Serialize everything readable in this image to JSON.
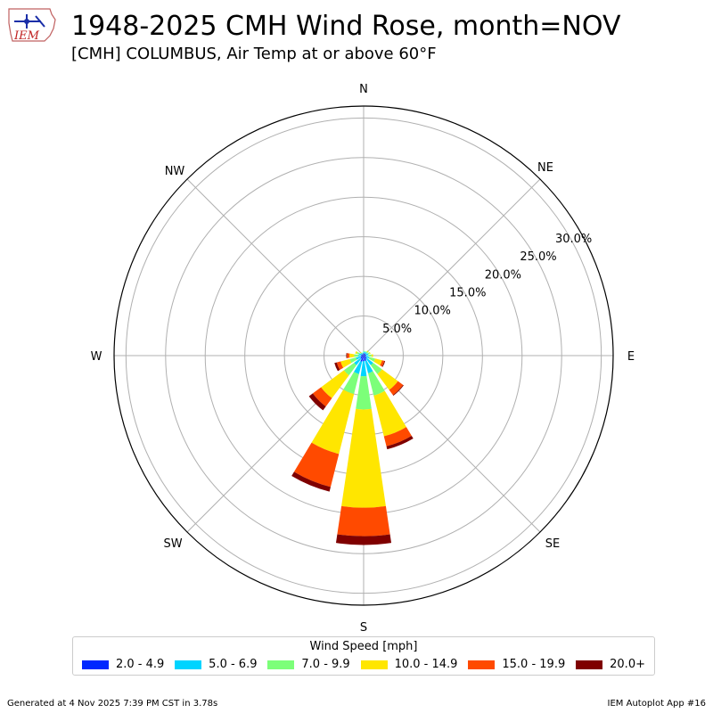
{
  "header": {
    "title": "1948-2025 CMH Wind Rose, month=NOV",
    "subtitle": "[CMH] COLUMBUS, Air Temp at or above 60°F",
    "logo_text": "IEM"
  },
  "footer": {
    "generated": "Generated at 4 Nov 2025 7:39 PM CST in 3.78s",
    "app": "IEM Autoplot App #16"
  },
  "chart_data": {
    "type": "windrose",
    "direction_labels": [
      "N",
      "NE",
      "E",
      "SE",
      "S",
      "SW",
      "W",
      "NW"
    ],
    "radial_ticks": [
      "5.0%",
      "10.0%",
      "15.0%",
      "20.0%",
      "25.0%",
      "30.0%"
    ],
    "radial_tick_values": [
      5,
      10,
      15,
      20,
      25,
      30
    ],
    "rmax": 31.5,
    "grid": true,
    "legend": {
      "title": "Wind Speed [mph]",
      "placement": "bottom",
      "entries": [
        "2.0 - 4.9",
        "5.0 - 6.9",
        "7.0 - 9.9",
        "10.0 - 14.9",
        "15.0 - 19.9",
        "20.0+"
      ]
    },
    "colors": [
      "#0028ff",
      "#00d4ff",
      "#7cff79",
      "#ffe600",
      "#ff4a00",
      "#7f0000"
    ],
    "directions_deg": [
      0,
      22.5,
      45,
      67.5,
      90,
      112.5,
      135,
      157.5,
      180,
      202.5,
      225,
      247.5,
      270,
      292.5,
      315,
      337.5
    ],
    "series": [
      {
        "name": "2.0 - 4.9",
        "values": [
          0.3,
          0.3,
          0.3,
          0.3,
          0.3,
          0.3,
          0.5,
          0.7,
          0.7,
          0.8,
          0.5,
          0.4,
          0.3,
          0.3,
          0.2,
          0.2
        ]
      },
      {
        "name": "5.0 - 6.9",
        "values": [
          0.2,
          0.2,
          0.2,
          0.3,
          0.3,
          0.5,
          1.0,
          1.6,
          1.9,
          1.6,
          1.0,
          0.6,
          0.4,
          0.3,
          0.2,
          0.1
        ]
      },
      {
        "name": "7.0 - 9.9",
        "values": [
          0.1,
          0.1,
          0.2,
          0.2,
          0.4,
          0.7,
          1.4,
          2.9,
          4.2,
          2.6,
          1.6,
          0.8,
          0.5,
          0.3,
          0.1,
          0.1
        ]
      },
      {
        "name": "10.0 - 14.9",
        "values": [
          0.0,
          0.0,
          0.1,
          0.1,
          0.2,
          0.9,
          2.5,
          5.3,
          12.4,
          7.8,
          3.6,
          1.2,
          0.6,
          0.2,
          0.1,
          0.0
        ]
      },
      {
        "name": "15.0 - 19.9",
        "values": [
          0.0,
          0.0,
          0.0,
          0.0,
          0.0,
          0.3,
          0.8,
          1.3,
          3.6,
          4.3,
          1.3,
          0.5,
          0.3,
          0.0,
          0.0,
          0.0
        ]
      },
      {
        "name": "20.0+",
        "values": [
          0.0,
          0.0,
          0.0,
          0.0,
          0.0,
          0.1,
          0.1,
          0.4,
          1.1,
          0.6,
          0.6,
          0.3,
          0.1,
          0.0,
          0.0,
          0.0
        ]
      }
    ]
  }
}
